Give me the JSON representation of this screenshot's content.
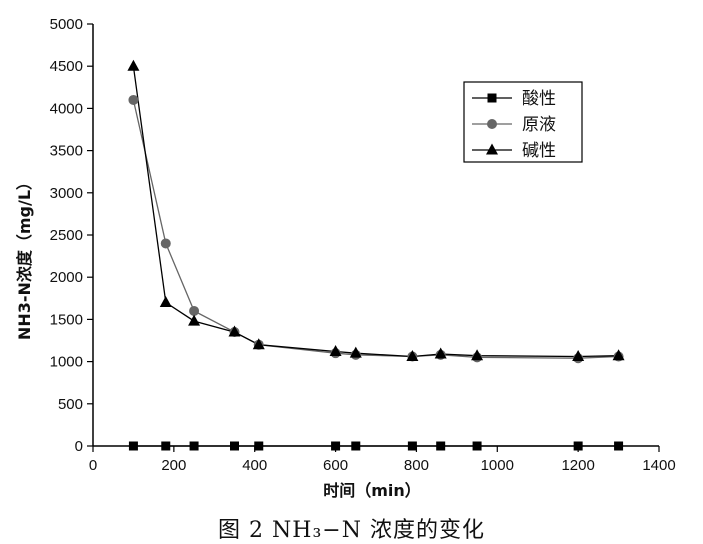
{
  "caption": "图 2 NH₃−N 浓度的变化",
  "chart_data": {
    "type": "line",
    "xlabel": "时间（min）",
    "ylabel": "NH3-N浓度（mg/L）",
    "xlim": [
      0,
      1400
    ],
    "ylim": [
      0,
      5000
    ],
    "xticks": [
      0,
      200,
      400,
      600,
      800,
      1000,
      1200,
      1400
    ],
    "yticks": [
      0,
      500,
      1000,
      1500,
      2000,
      2500,
      3000,
      3500,
      4000,
      4500,
      5000
    ],
    "grid": false,
    "legend_position": "top-right",
    "series": [
      {
        "name": "酸性",
        "marker": "square",
        "color": "#000000",
        "x": [
          100,
          180,
          250,
          350,
          410,
          600,
          650,
          790,
          860,
          950,
          1200,
          1300
        ],
        "y": [
          0,
          0,
          0,
          0,
          0,
          0,
          0,
          0,
          0,
          0,
          0,
          0
        ]
      },
      {
        "name": "原液",
        "marker": "circle",
        "color": "#666666",
        "x": [
          100,
          180,
          250,
          350,
          410,
          600,
          650,
          790,
          860,
          950,
          1200,
          1300
        ],
        "y": [
          4100,
          2400,
          1600,
          1350,
          1200,
          1100,
          1080,
          1060,
          1080,
          1050,
          1040,
          1060
        ]
      },
      {
        "name": "碱性",
        "marker": "triangle",
        "color": "#000000",
        "x": [
          100,
          180,
          250,
          350,
          410,
          600,
          650,
          790,
          860,
          950,
          1200,
          1300
        ],
        "y": [
          4500,
          1700,
          1480,
          1350,
          1200,
          1120,
          1100,
          1060,
          1090,
          1070,
          1060,
          1070
        ]
      }
    ]
  }
}
